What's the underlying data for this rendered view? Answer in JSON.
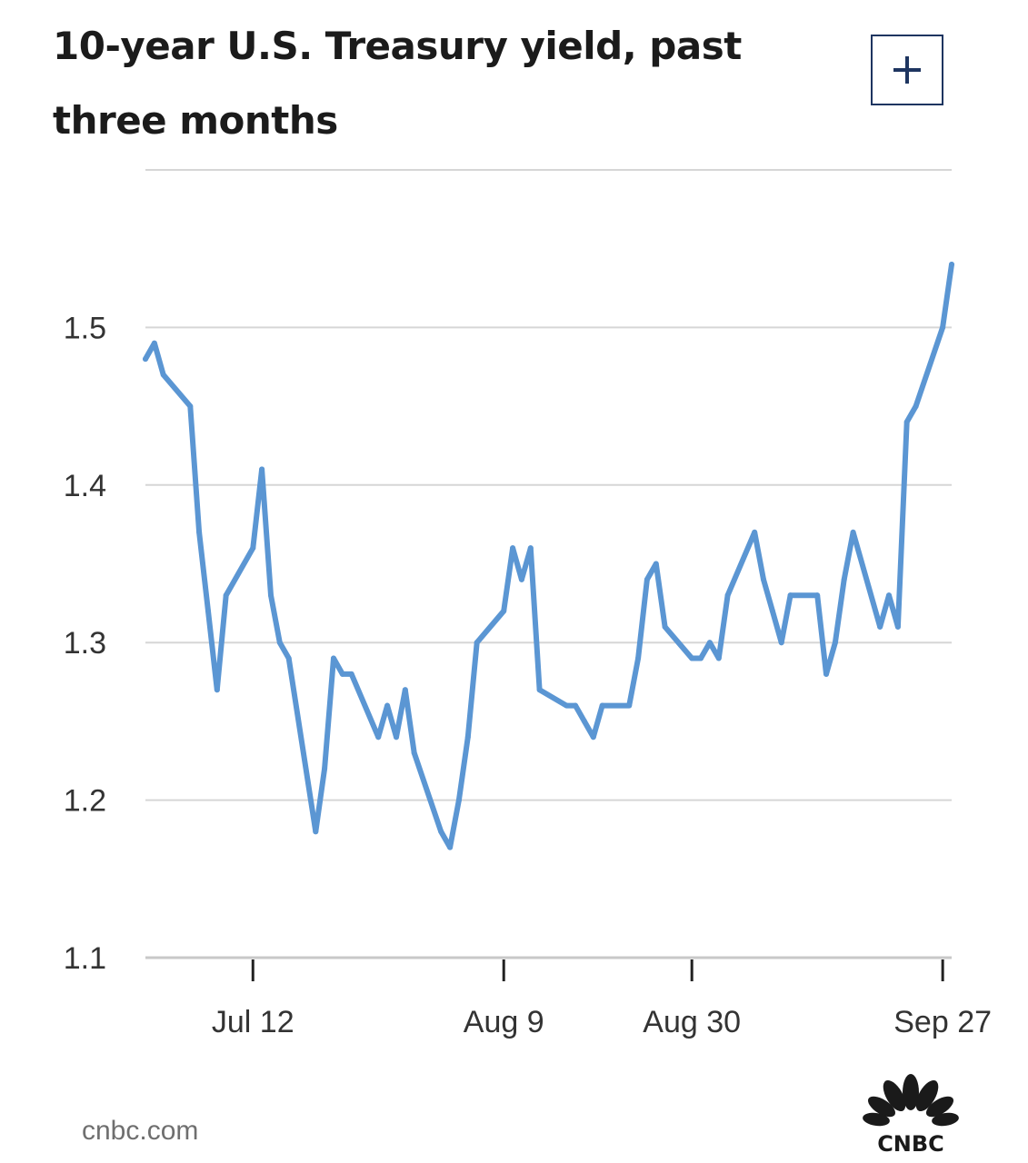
{
  "header": {
    "title": "10-year U.S. Treasury yield, past three months",
    "expand_icon": "plus-icon"
  },
  "footer": {
    "source": "cnbc.com",
    "logo_text": "CNBC",
    "logo_icon": "peacock-logo-icon"
  },
  "colors": {
    "line": "#5b96d3",
    "grid": "#d6d6d6",
    "text": "#1b1b1b",
    "tick_text": "#333333",
    "button_border": "#1e3560"
  },
  "chart_data": {
    "type": "line",
    "title": "10-year U.S. Treasury yield, past three months",
    "xlabel": "",
    "ylabel": "",
    "ylim": [
      1.1,
      1.6
    ],
    "yticks": [
      "1.1",
      "1.2",
      "1.3",
      "1.4",
      "1.5"
    ],
    "xticks": [
      {
        "label": "Jul 12",
        "date": "2021-07-12"
      },
      {
        "label": "Aug 9",
        "date": "2021-08-09"
      },
      {
        "label": "Aug 30",
        "date": "2021-08-30"
      },
      {
        "label": "Sep 27",
        "date": "2021-09-27"
      }
    ],
    "xlim": [
      "2021-06-30",
      "2021-09-28"
    ],
    "grid": true,
    "legend": "none",
    "series": [
      {
        "x": [
          "2021-06-30",
          "2021-07-01",
          "2021-07-02",
          "2021-07-05",
          "2021-07-06",
          "2021-07-07",
          "2021-07-08",
          "2021-07-09",
          "2021-07-12",
          "2021-07-13",
          "2021-07-14",
          "2021-07-15",
          "2021-07-16",
          "2021-07-19",
          "2021-07-20",
          "2021-07-21",
          "2021-07-22",
          "2021-07-23",
          "2021-07-26",
          "2021-07-27",
          "2021-07-28",
          "2021-07-29",
          "2021-07-30",
          "2021-08-02",
          "2021-08-03",
          "2021-08-04",
          "2021-08-05",
          "2021-08-06",
          "2021-08-09",
          "2021-08-10",
          "2021-08-11",
          "2021-08-12",
          "2021-08-13",
          "2021-08-16",
          "2021-08-17",
          "2021-08-18",
          "2021-08-19",
          "2021-08-20",
          "2021-08-23",
          "2021-08-24",
          "2021-08-25",
          "2021-08-26",
          "2021-08-27",
          "2021-08-30",
          "2021-08-31",
          "2021-09-01",
          "2021-09-02",
          "2021-09-03",
          "2021-09-06",
          "2021-09-07",
          "2021-09-08",
          "2021-09-09",
          "2021-09-10",
          "2021-09-13",
          "2021-09-14",
          "2021-09-15",
          "2021-09-16",
          "2021-09-17",
          "2021-09-20",
          "2021-09-21",
          "2021-09-22",
          "2021-09-23",
          "2021-09-24",
          "2021-09-27",
          "2021-09-28"
        ],
        "values": [
          1.48,
          1.49,
          1.47,
          1.45,
          1.37,
          1.32,
          1.27,
          1.33,
          1.36,
          1.41,
          1.33,
          1.3,
          1.29,
          1.18,
          1.22,
          1.29,
          1.28,
          1.28,
          1.24,
          1.26,
          1.24,
          1.27,
          1.23,
          1.18,
          1.17,
          1.2,
          1.24,
          1.3,
          1.32,
          1.36,
          1.34,
          1.36,
          1.27,
          1.26,
          1.26,
          1.25,
          1.24,
          1.26,
          1.26,
          1.29,
          1.34,
          1.35,
          1.31,
          1.29,
          1.29,
          1.3,
          1.29,
          1.33,
          1.37,
          1.34,
          1.32,
          1.3,
          1.33,
          1.33,
          1.28,
          1.3,
          1.34,
          1.37,
          1.31,
          1.33,
          1.31,
          1.44,
          1.45,
          1.5,
          1.54
        ]
      }
    ]
  }
}
